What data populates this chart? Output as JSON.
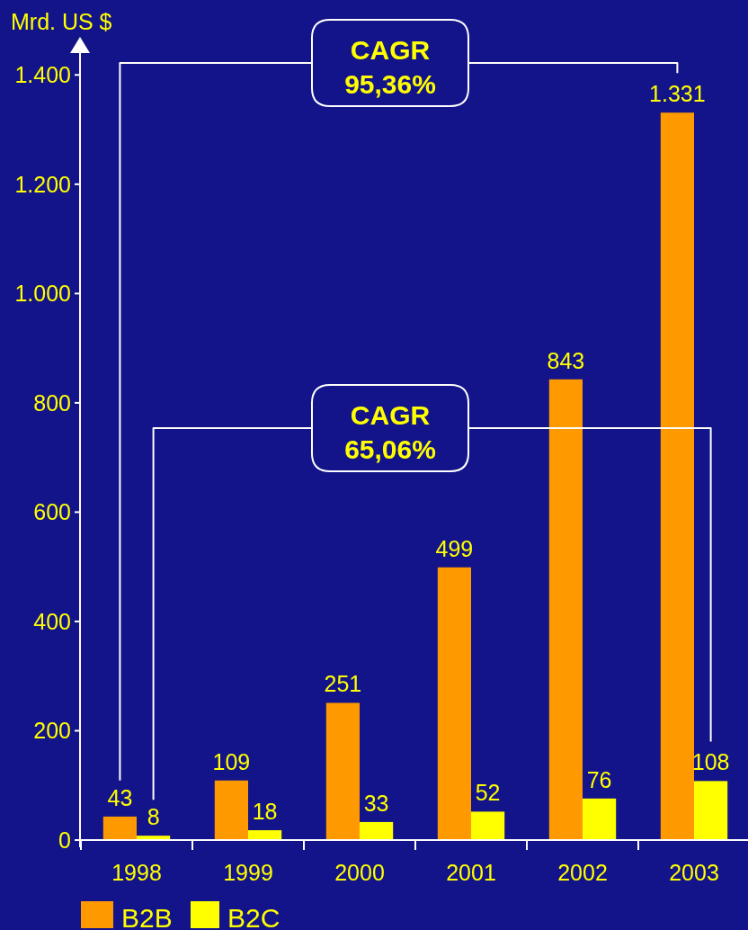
{
  "chart_data": {
    "type": "bar",
    "ylabel": "Mrd. US $",
    "categories": [
      "1998",
      "1999",
      "2000",
      "2001",
      "2002",
      "2003"
    ],
    "series": [
      {
        "name": "B2B",
        "color": "#ff9900",
        "values": [
          43,
          109,
          251,
          499,
          843,
          1331
        ],
        "value_labels": [
          "43",
          "109",
          "251",
          "499",
          "843",
          "1.331"
        ]
      },
      {
        "name": "B2C",
        "color": "#ffff00",
        "values": [
          8,
          18,
          33,
          52,
          76,
          108
        ],
        "value_labels": [
          "8",
          "18",
          "33",
          "52",
          "76",
          "108"
        ]
      }
    ],
    "ylim": [
      0,
      1440
    ],
    "yticks": [
      0,
      200,
      400,
      600,
      800,
      {
        "value": 1000,
        "label": "1.000"
      },
      {
        "value": 1200,
        "label": "1.200"
      },
      {
        "value": 1400,
        "label": "1.400"
      }
    ],
    "legend": "bottom",
    "annotations": [
      "CAGR 95,36%",
      "CAGR 65,06%"
    ]
  }
}
